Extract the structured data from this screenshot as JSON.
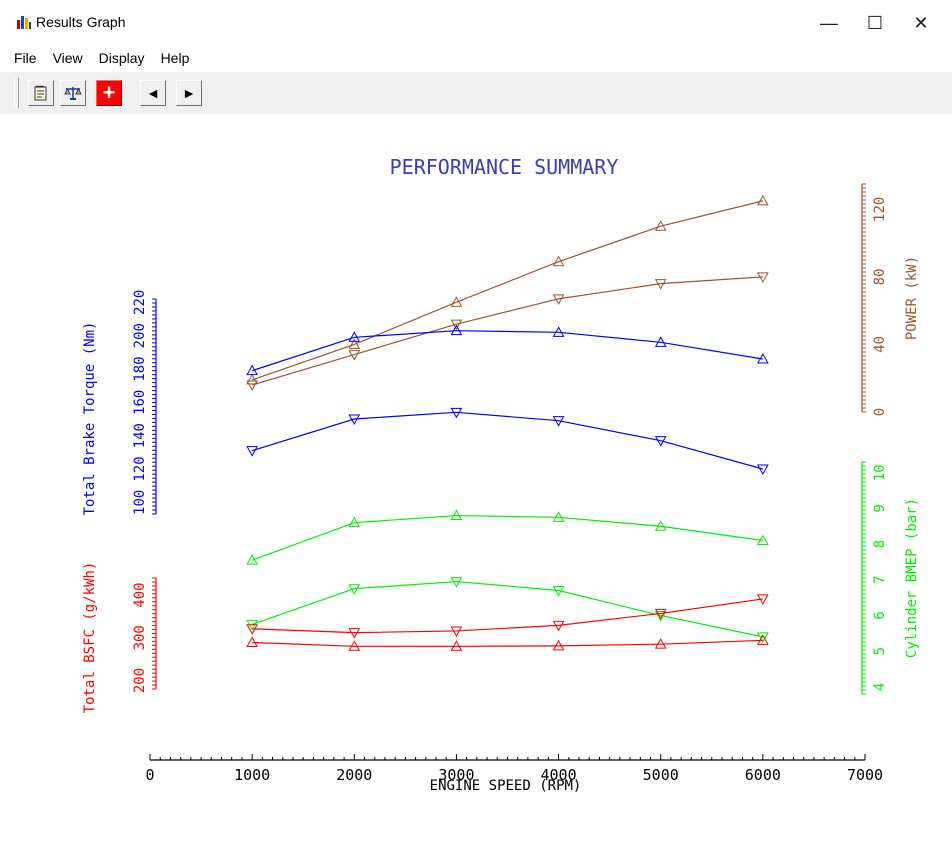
{
  "window": {
    "title": "Results Graph",
    "minimize": "—",
    "maximize": "☐",
    "close": "✕"
  },
  "menu": [
    "File",
    "View",
    "Display",
    "Help"
  ],
  "toolbar": {
    "add_symbol": "+",
    "prev_symbol": "◄",
    "next_symbol": "►"
  },
  "chart_data": {
    "type": "line",
    "title": "PERFORMANCE SUMMARY",
    "xlabel": "ENGINE SPEED (RPM)",
    "x_ticks": [
      "0",
      "1000",
      "2000",
      "3000",
      "4000",
      "5000",
      "6000",
      "7000"
    ],
    "xlim": [
      0,
      7000
    ],
    "x": [
      1000,
      2000,
      3000,
      4000,
      5000,
      6000
    ],
    "axes": {
      "power": {
        "label": "POWER (kW)",
        "color": "#a0522d",
        "ticks": [
          "0",
          "40",
          "80",
          "120"
        ],
        "range": [
          0,
          135
        ]
      },
      "torque": {
        "label": "Total Brake Torque (Nm)",
        "color": "#0000ff",
        "ticks": [
          "100",
          "120",
          "140",
          "160",
          "180",
          "200",
          "220"
        ],
        "range": [
          93,
          222
        ]
      },
      "bmep": {
        "label": "Cylinder BMEP (bar)",
        "color": "#00ee00",
        "ticks": [
          "4",
          "5",
          "6",
          "7",
          "8",
          "9",
          "10"
        ],
        "range": [
          3.8,
          10.3
        ]
      },
      "bsfc": {
        "label": "Total BSFC (g/kWh)",
        "color": "#ff0000",
        "ticks": [
          "200",
          "300",
          "400"
        ],
        "range": [
          180,
          440
        ]
      }
    },
    "series": [
      {
        "axis": "power",
        "marker": "up",
        "values": [
          19,
          40,
          65,
          89,
          110,
          125
        ]
      },
      {
        "axis": "power",
        "marker": "down",
        "values": [
          16,
          34,
          52,
          67,
          76,
          80
        ]
      },
      {
        "axis": "torque",
        "marker": "up",
        "values": [
          179,
          199,
          203,
          202,
          196,
          186
        ]
      },
      {
        "axis": "torque",
        "marker": "down",
        "values": [
          131,
          150,
          154,
          149,
          137,
          120
        ]
      },
      {
        "axis": "bmep",
        "marker": "up",
        "values": [
          7.55,
          8.6,
          8.8,
          8.75,
          8.5,
          8.1
        ]
      },
      {
        "axis": "bmep",
        "marker": "down",
        "values": [
          5.75,
          6.75,
          6.95,
          6.7,
          6.0,
          5.4
        ]
      },
      {
        "axis": "bsfc",
        "marker": "down",
        "values": [
          321,
          312,
          316,
          329,
          357,
          391
        ]
      },
      {
        "axis": "bsfc",
        "marker": "up",
        "values": [
          289,
          280,
          280,
          281,
          285,
          294
        ]
      }
    ]
  }
}
